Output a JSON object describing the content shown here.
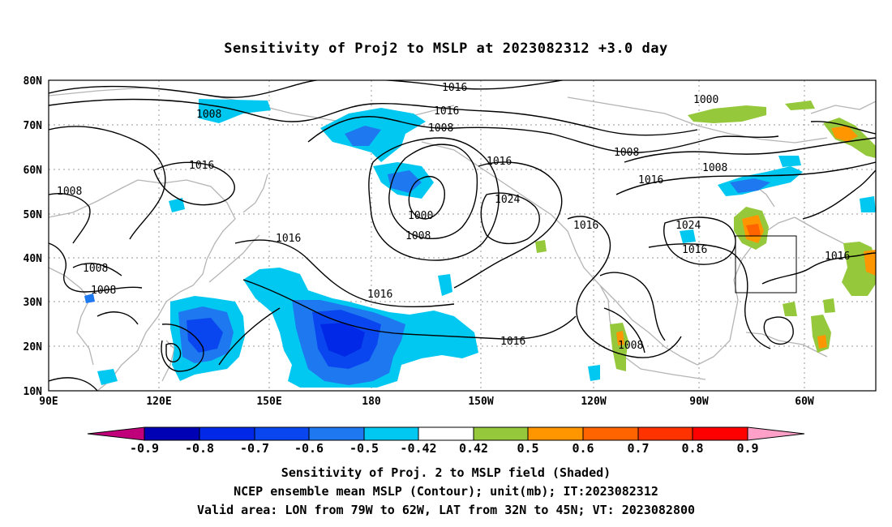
{
  "title": "Sensitivity of Proj2 to MSLP at 2023082312 +3.0 day",
  "lat_labels": [
    "80N",
    "70N",
    "60N",
    "50N",
    "40N",
    "30N",
    "20N",
    "10N"
  ],
  "lon_labels": [
    "90E",
    "120E",
    "150E",
    "180",
    "150W",
    "120W",
    "90W",
    "60W"
  ],
  "contour_labels": [
    "1016",
    "1016",
    "1008",
    "1008",
    "1016",
    "1008",
    "1000",
    "1008",
    "1016",
    "1016",
    "1008",
    "1016",
    "1024",
    "1000",
    "1008",
    "1016",
    "1008",
    "1016",
    "1024",
    "1016",
    "1016",
    "1016",
    "1008",
    "1008",
    "1008"
  ],
  "colorbar": {
    "ticks": [
      "-0.9",
      "-0.8",
      "-0.7",
      "-0.6",
      "-0.5",
      "-0.42",
      "0.42",
      "0.5",
      "0.6",
      "0.7",
      "0.8",
      "0.9"
    ],
    "colors": [
      "#c0007a",
      "#0000b4",
      "#0028e6",
      "#0a46f0",
      "#1e78f0",
      "#00c8f0",
      "#ffffff",
      "#96c83c",
      "#ff9600",
      "#ff6400",
      "#ff3200",
      "#ff0000",
      "#ffa0c8"
    ]
  },
  "footer": {
    "line1": "Sensitivity of Proj. 2 to MSLP field (Shaded)",
    "line2": "NCEP ensemble mean MSLP (Contour); unit(mb); IT:2023082312",
    "line3": "Valid area: LON from 79W to 62W, LAT from 32N to 45N; VT: 2023082800"
  }
}
